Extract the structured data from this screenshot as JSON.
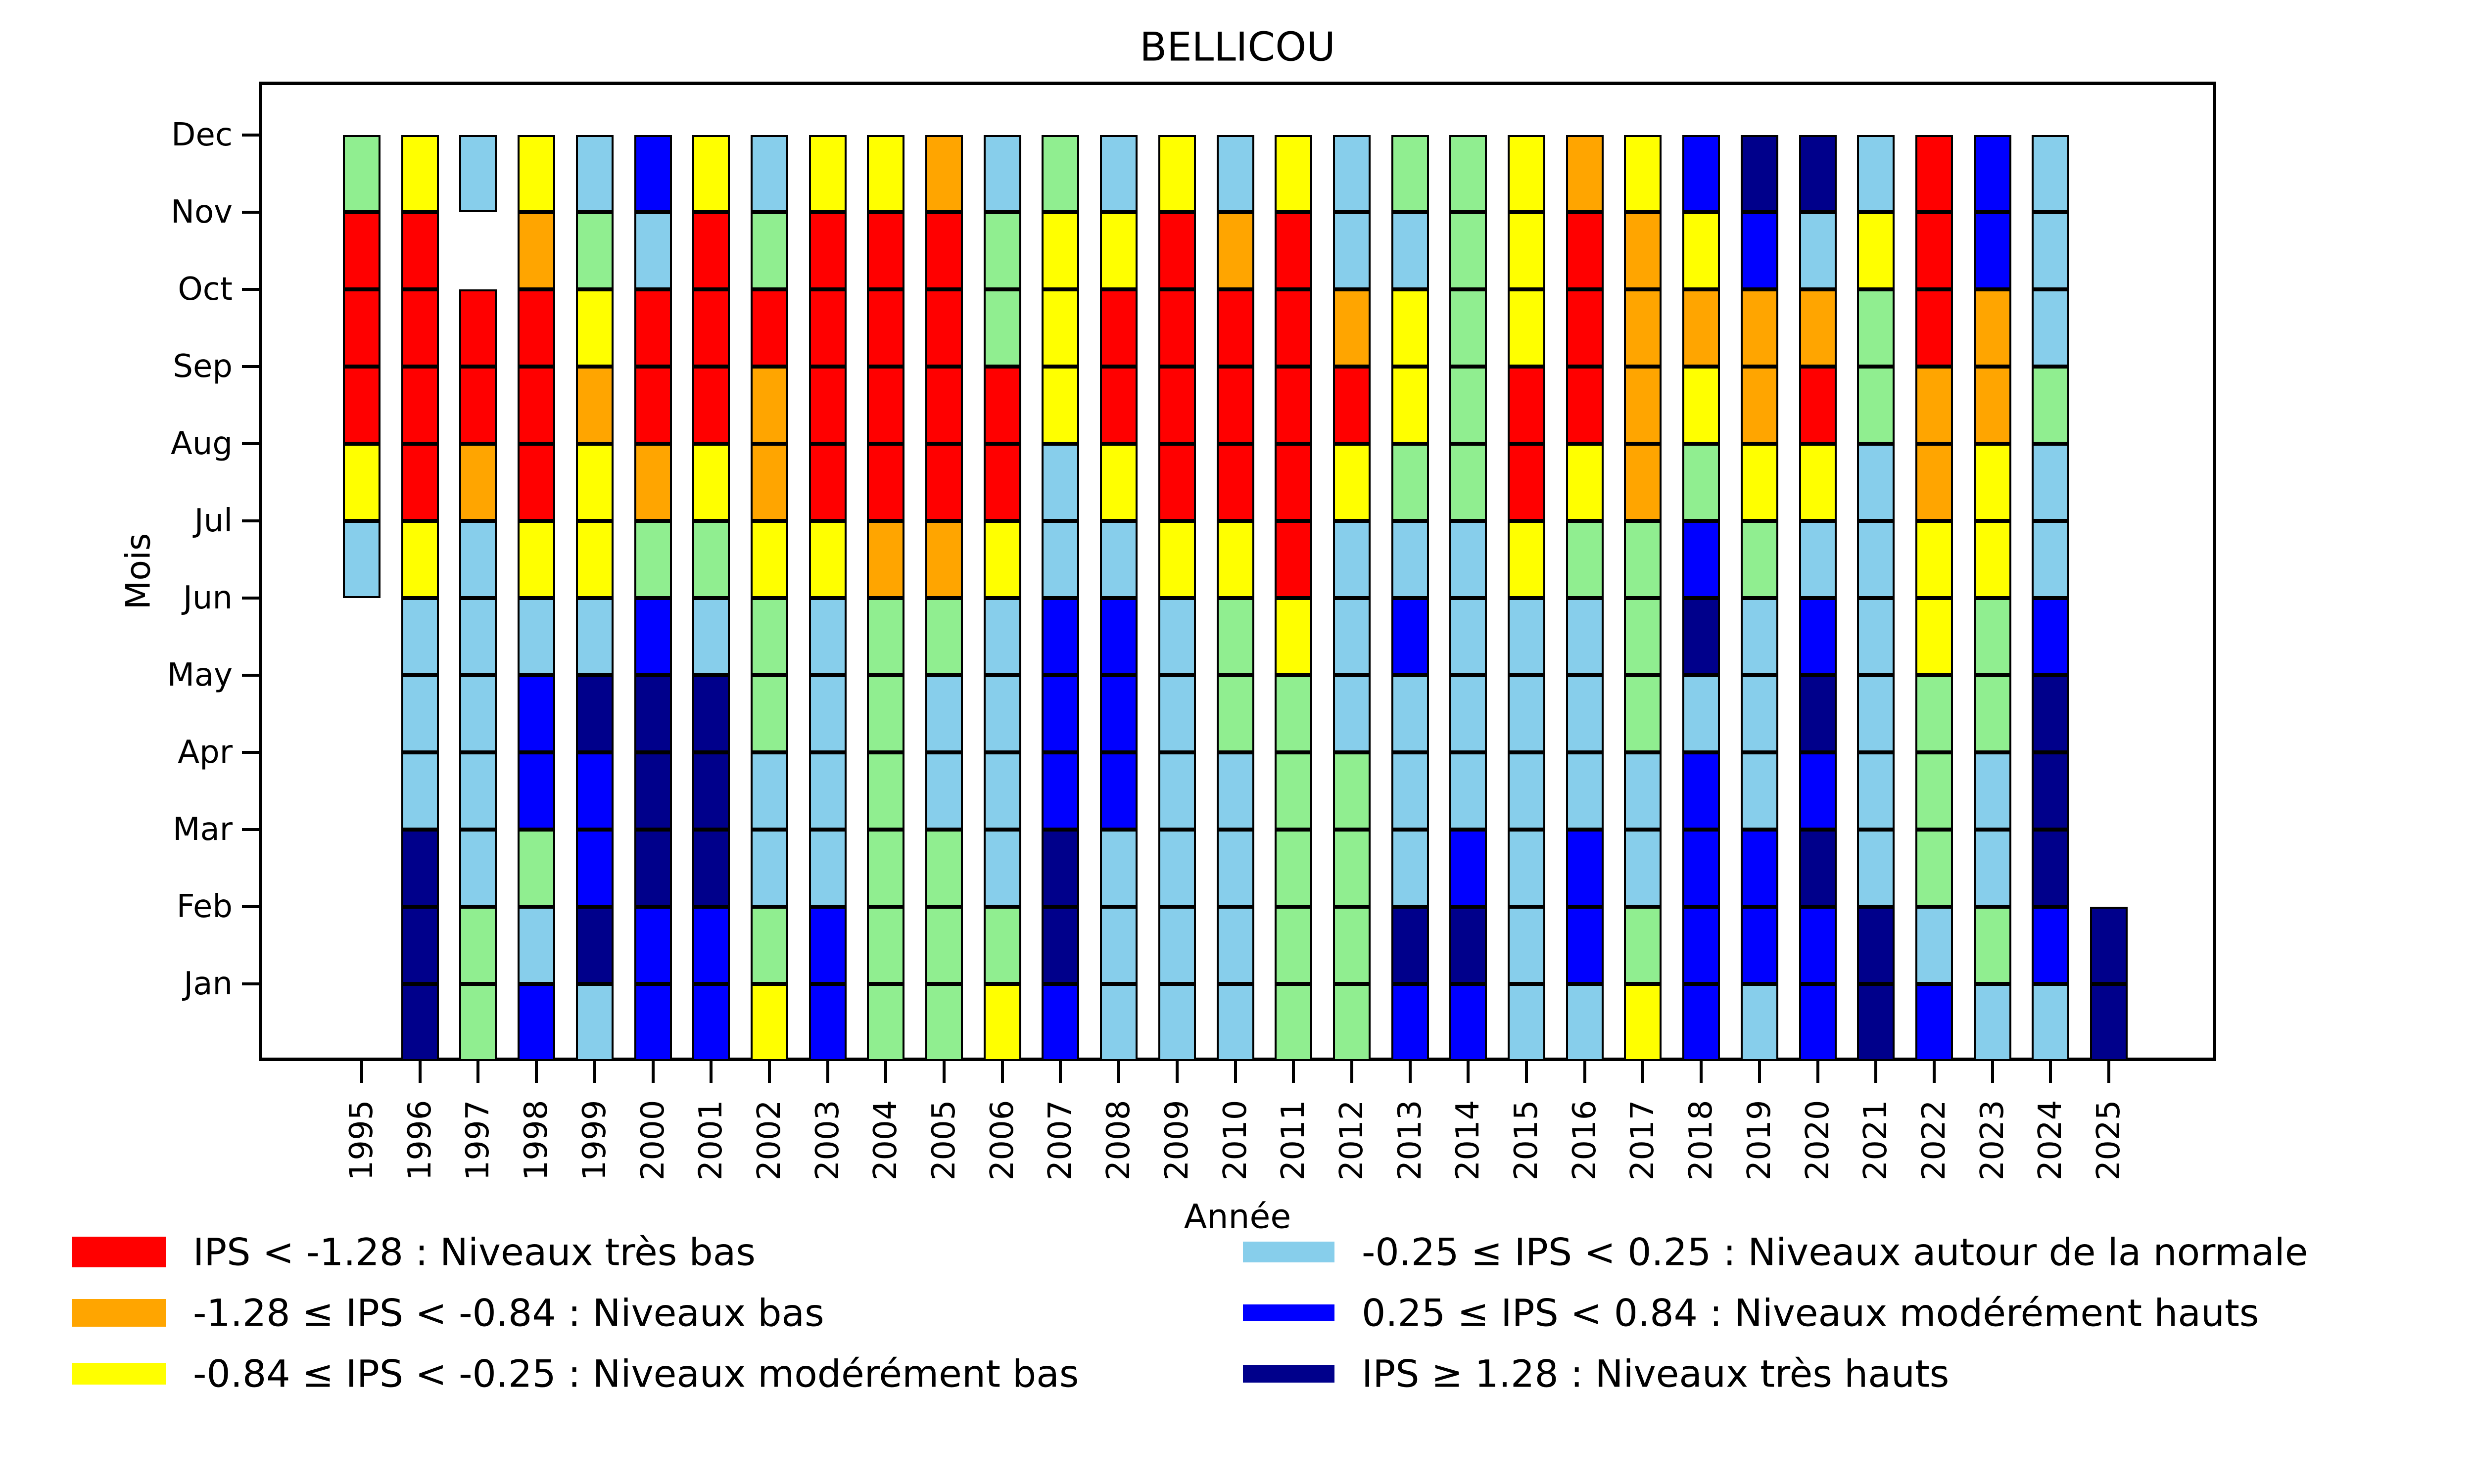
{
  "figure": {
    "title": "BELLICOU",
    "xlabel": "Année",
    "ylabel": "Mois"
  },
  "chart_data": {
    "type": "heatmap",
    "title": "BELLICOU",
    "xlabel": "Année",
    "ylabel": "Mois",
    "x_years": [
      "1995",
      "1996",
      "1997",
      "1998",
      "1999",
      "2000",
      "2001",
      "2002",
      "2003",
      "2004",
      "2005",
      "2006",
      "2007",
      "2008",
      "2009",
      "2010",
      "2011",
      "2012",
      "2013",
      "2014",
      "2015",
      "2016",
      "2017",
      "2018",
      "2019",
      "2020",
      "2021",
      "2022",
      "2023",
      "2024",
      "2025"
    ],
    "y_months_top_to_bottom": [
      "Dec",
      "Nov",
      "Oct",
      "Sep",
      "Aug",
      "Jul",
      "Jun",
      "May",
      "Apr",
      "Mar",
      "Feb",
      "Jan"
    ],
    "palette": {
      "R": "#ff0000",
      "O": "#ffa500",
      "Y": "#ffff00",
      "G": "#90ee90",
      "C": "#87ceeb",
      "B": "#0000ff",
      "N": "#00008b"
    },
    "cells_by_year_top_to_bottom": {
      "1995": [
        "G",
        "R",
        "R",
        "R",
        "Y",
        "C",
        null,
        null,
        null,
        null,
        null,
        null
      ],
      "1996": [
        "Y",
        "R",
        "R",
        "R",
        "R",
        "Y",
        "C",
        "C",
        "C",
        "N",
        "N",
        "N"
      ],
      "1997": [
        "C",
        null,
        "R",
        "R",
        "O",
        "C",
        "C",
        "C",
        "C",
        "C",
        "G",
        "G"
      ],
      "1998": [
        "Y",
        "O",
        "R",
        "R",
        "R",
        "Y",
        "C",
        "B",
        "B",
        "G",
        "C",
        "B"
      ],
      "1999": [
        "C",
        "G",
        "Y",
        "O",
        "Y",
        "Y",
        "C",
        "N",
        "B",
        "B",
        "N",
        "C"
      ],
      "2000": [
        "B",
        "C",
        "R",
        "R",
        "O",
        "G",
        "B",
        "N",
        "N",
        "N",
        "B",
        "B"
      ],
      "2001": [
        "Y",
        "R",
        "R",
        "R",
        "Y",
        "G",
        "C",
        "N",
        "N",
        "N",
        "B",
        "B"
      ],
      "2002": [
        "C",
        "G",
        "R",
        "O",
        "O",
        "Y",
        "G",
        "G",
        "C",
        "C",
        "G",
        "Y"
      ],
      "2003": [
        "Y",
        "R",
        "R",
        "R",
        "R",
        "Y",
        "C",
        "C",
        "C",
        "C",
        "B",
        "B"
      ],
      "2004": [
        "Y",
        "R",
        "R",
        "R",
        "R",
        "O",
        "G",
        "G",
        "G",
        "G",
        "G",
        "G"
      ],
      "2005": [
        "O",
        "R",
        "R",
        "R",
        "R",
        "O",
        "G",
        "C",
        "C",
        "G",
        "G",
        "G"
      ],
      "2006": [
        "C",
        "G",
        "G",
        "R",
        "R",
        "Y",
        "C",
        "C",
        "C",
        "C",
        "G",
        "Y"
      ],
      "2007": [
        "G",
        "Y",
        "Y",
        "Y",
        "C",
        "C",
        "B",
        "B",
        "B",
        "N",
        "N",
        "B"
      ],
      "2008": [
        "C",
        "Y",
        "R",
        "R",
        "Y",
        "C",
        "B",
        "B",
        "B",
        "C",
        "C",
        "C"
      ],
      "2009": [
        "Y",
        "R",
        "R",
        "R",
        "R",
        "Y",
        "C",
        "C",
        "C",
        "C",
        "C",
        "C"
      ],
      "2010": [
        "C",
        "O",
        "R",
        "R",
        "R",
        "Y",
        "G",
        "G",
        "C",
        "C",
        "C",
        "C"
      ],
      "2011": [
        "Y",
        "R",
        "R",
        "R",
        "R",
        "R",
        "Y",
        "G",
        "G",
        "G",
        "G",
        "G"
      ],
      "2012": [
        "C",
        "C",
        "O",
        "R",
        "Y",
        "C",
        "C",
        "C",
        "G",
        "G",
        "G",
        "G"
      ],
      "2013": [
        "G",
        "C",
        "Y",
        "Y",
        "G",
        "C",
        "B",
        "C",
        "C",
        "C",
        "N",
        "B"
      ],
      "2014": [
        "G",
        "G",
        "G",
        "G",
        "G",
        "C",
        "C",
        "C",
        "C",
        "B",
        "N",
        "B"
      ],
      "2015": [
        "Y",
        "Y",
        "Y",
        "R",
        "R",
        "Y",
        "C",
        "C",
        "C",
        "C",
        "C",
        "C"
      ],
      "2016": [
        "O",
        "R",
        "R",
        "R",
        "Y",
        "G",
        "C",
        "C",
        "C",
        "B",
        "B",
        "C"
      ],
      "2017": [
        "Y",
        "O",
        "O",
        "O",
        "O",
        "G",
        "G",
        "G",
        "C",
        "C",
        "G",
        "Y"
      ],
      "2018": [
        "B",
        "Y",
        "O",
        "Y",
        "G",
        "B",
        "N",
        "C",
        "B",
        "B",
        "B",
        "B"
      ],
      "2019": [
        "N",
        "B",
        "O",
        "O",
        "Y",
        "G",
        "C",
        "C",
        "C",
        "B",
        "B",
        "C"
      ],
      "2020": [
        "N",
        "C",
        "O",
        "R",
        "Y",
        "C",
        "B",
        "N",
        "B",
        "N",
        "B",
        "B"
      ],
      "2021": [
        "C",
        "Y",
        "G",
        "G",
        "C",
        "C",
        "C",
        "C",
        "C",
        "C",
        "N",
        "N"
      ],
      "2022": [
        "R",
        "R",
        "R",
        "O",
        "O",
        "Y",
        "Y",
        "G",
        "G",
        "G",
        "C",
        "B"
      ],
      "2023": [
        "B",
        "B",
        "O",
        "O",
        "Y",
        "Y",
        "G",
        "G",
        "C",
        "C",
        "G",
        "C"
      ],
      "2024": [
        "C",
        "C",
        "C",
        "G",
        "C",
        "C",
        "B",
        "N",
        "N",
        "N",
        "B",
        "C"
      ],
      "2025": [
        null,
        null,
        null,
        null,
        null,
        null,
        null,
        null,
        null,
        null,
        "N",
        "N"
      ]
    },
    "legend_position": "below-plot, two columns",
    "grid": "off"
  },
  "legend": {
    "left_column": [
      {
        "color": "#ff0000",
        "label": "IPS < -1.28 : Niveaux très bas"
      },
      {
        "color": "#ffa500",
        "label": "-1.28 ≤ IPS < -0.84 : Niveaux bas"
      },
      {
        "color": "#ffff00",
        "label": "-0.84 ≤ IPS < -0.25 : Niveaux modérément bas"
      }
    ],
    "right_column": [
      {
        "color": "#87ceeb",
        "label": "-0.25 ≤ IPS < 0.25 : Niveaux autour de la normale"
      },
      {
        "color": "#0000ff",
        "label": "0.25 ≤ IPS < 0.84 : Niveaux modérément hauts"
      },
      {
        "color": "#00008b",
        "label": "IPS ≥ 1.28 : Niveaux très hauts"
      }
    ]
  }
}
